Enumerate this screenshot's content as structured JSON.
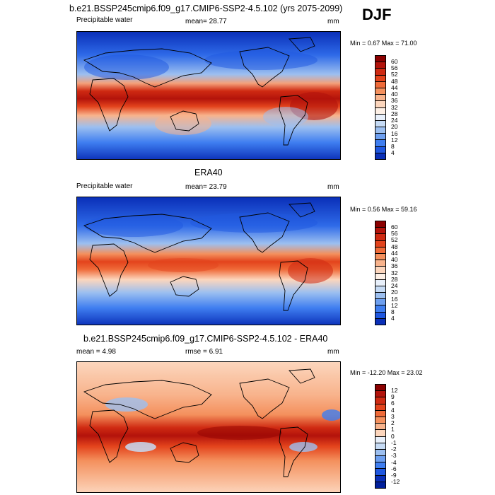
{
  "season": "DJF",
  "panels": [
    {
      "title": "b.e21.BSSP245cmip6.f09_g17.CMIP6-SSP2-4.5.102 (yrs 2075-2099)",
      "left_label": "Precipitable water",
      "center_label": "mean=  28.77",
      "units": "mm",
      "minmax": "Min =   0.67 Max =  71.00",
      "colorbar_labels": [
        "60",
        "56",
        "52",
        "48",
        "44",
        "40",
        "36",
        "32",
        "28",
        "24",
        "20",
        "16",
        "12",
        "8",
        "4"
      ],
      "colorbar_colors": [
        "#8b0000",
        "#b3130b",
        "#cf2a12",
        "#e3431c",
        "#ef6a38",
        "#f4905d",
        "#f8b38c",
        "#fcd6bd",
        "#fdf0e6",
        "#e8f0fb",
        "#c6dbf5",
        "#9cbff0",
        "#6d9ff0",
        "#3f7ef0",
        "#1f57e0",
        "#0a2fb8"
      ]
    },
    {
      "title": "ERA40",
      "left_label": "Precipitable water",
      "center_label": "mean=  23.79",
      "units": "mm",
      "minmax": "Min =   0.56 Max =  59.16",
      "colorbar_labels": [
        "60",
        "56",
        "52",
        "48",
        "44",
        "40",
        "36",
        "32",
        "28",
        "24",
        "20",
        "16",
        "12",
        "8",
        "4"
      ],
      "colorbar_colors": [
        "#8b0000",
        "#b3130b",
        "#cf2a12",
        "#e3431c",
        "#ef6a38",
        "#f4905d",
        "#f8b38c",
        "#fcd6bd",
        "#fdf0e6",
        "#e8f0fb",
        "#c6dbf5",
        "#9cbff0",
        "#6d9ff0",
        "#3f7ef0",
        "#1f57e0",
        "#0a2fb8"
      ]
    },
    {
      "title": "b.e21.BSSP245cmip6.f09_g17.CMIP6-SSP2-4.5.102 - ERA40",
      "left_label": "mean =   4.98",
      "center_label": "rmse =   6.91",
      "units": "mm",
      "minmax": "Min = -12.20 Max =  23.02",
      "colorbar_labels": [
        "12",
        "9",
        "6",
        "4",
        "3",
        "2",
        "1",
        "0",
        "-1",
        "-2",
        "-3",
        "-4",
        "-6",
        "-9",
        "-12"
      ],
      "colorbar_colors": [
        "#8b0000",
        "#b3130b",
        "#cf2a12",
        "#e3431c",
        "#ef6a38",
        "#f4905d",
        "#f8b38c",
        "#fcd6bd",
        "#e8f0fb",
        "#c6dbf5",
        "#9cbff0",
        "#6d9ff0",
        "#3f7ef0",
        "#1f57e0",
        "#0a2fb8",
        "#001f9b"
      ]
    }
  ]
}
